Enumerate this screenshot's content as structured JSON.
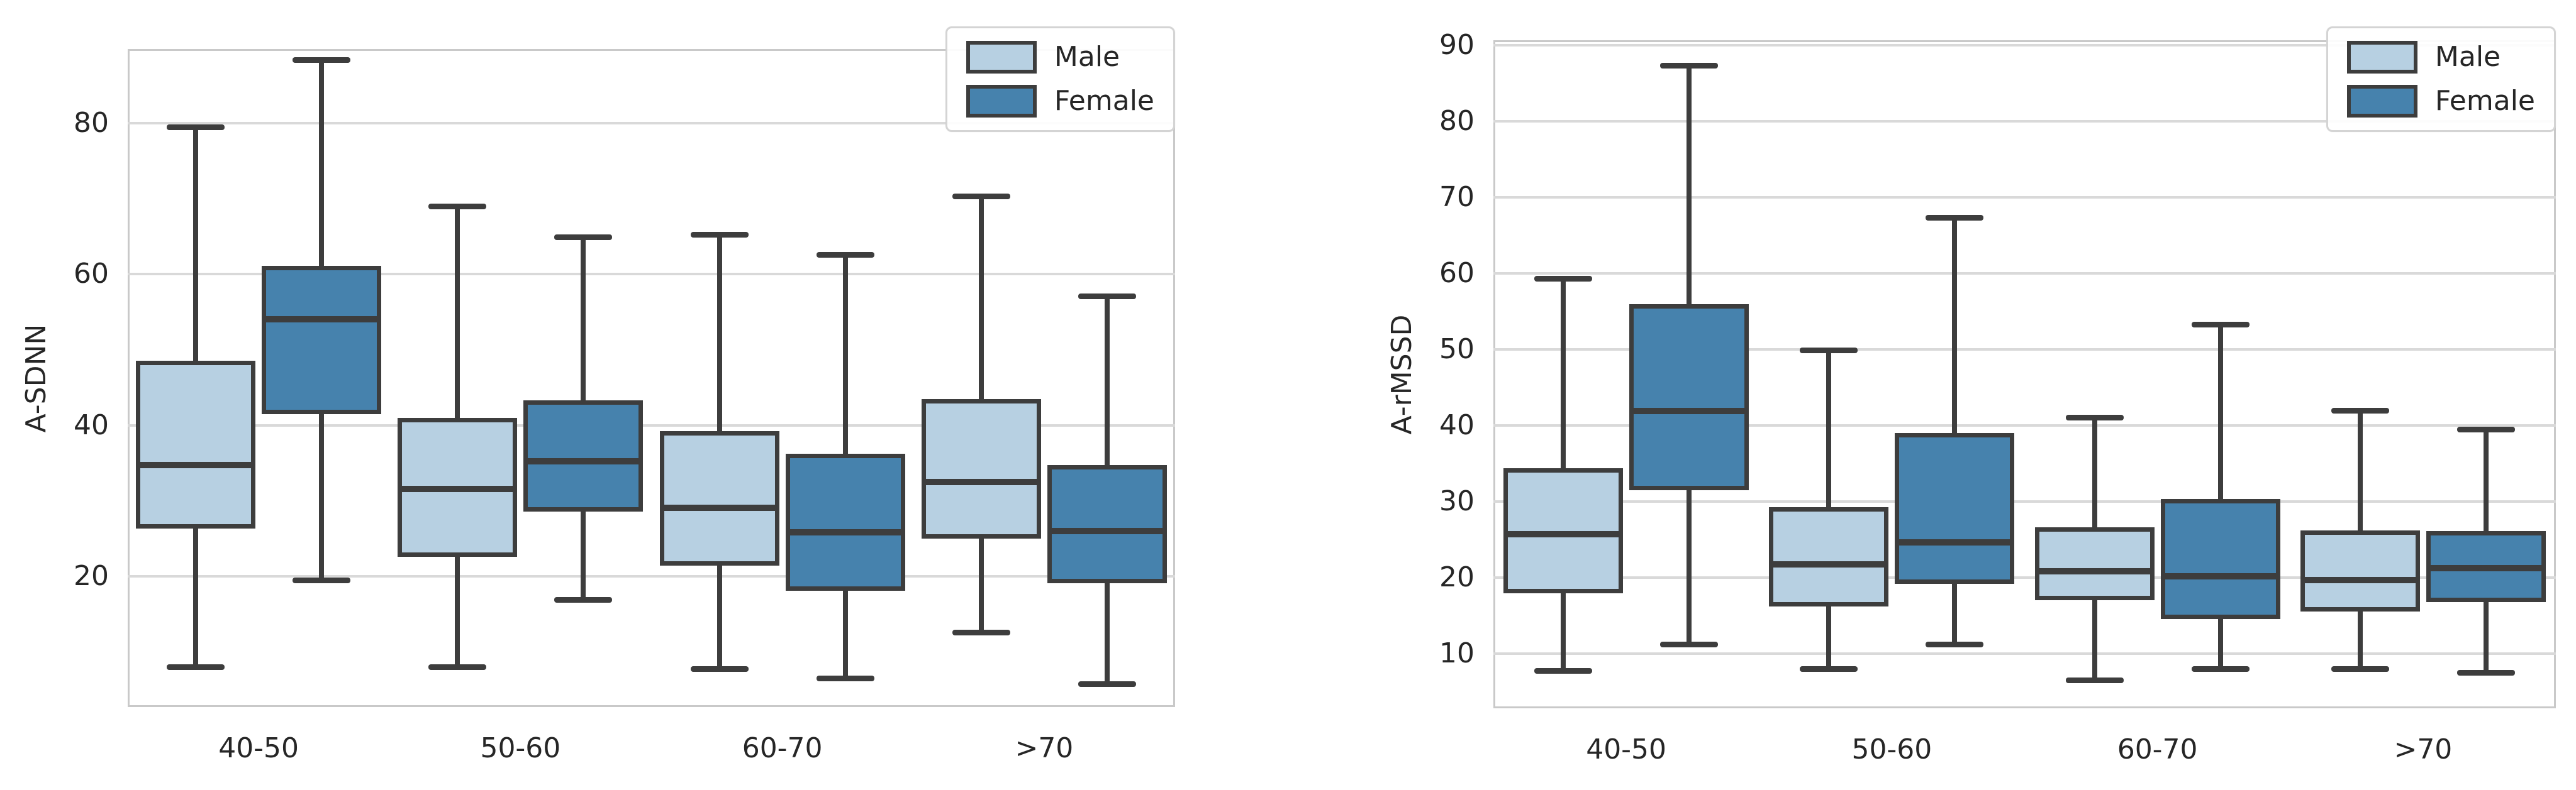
{
  "styles": {
    "male_fill": "#b7d0e2",
    "female_fill": "#4682ad",
    "box_edge": "#3d3d3d",
    "grid_color": "#d9d9d9",
    "spine_color": "#c9c9c9",
    "text_color": "#262626",
    "background": "#ffffff"
  },
  "chart_data": [
    {
      "type": "box",
      "title": "",
      "xlabel": "",
      "ylabel": "A-SDNN",
      "categories": [
        "40-50",
        "50-60",
        "60-70",
        ">70"
      ],
      "yticks": [
        20,
        40,
        60,
        80
      ],
      "ylim": [
        2.7,
        89.8
      ],
      "grid": true,
      "legend_position": "upper right",
      "series": [
        {
          "name": "Male",
          "fill": "#b7d0e2",
          "boxes": [
            {
              "whisker_low": 8.0,
              "q1": 26.3,
              "median": 34.7,
              "q3": 48.5,
              "whisker_high": 79.5
            },
            {
              "whisker_low": 8.0,
              "q1": 22.6,
              "median": 31.6,
              "q3": 41.0,
              "whisker_high": 69.0
            },
            {
              "whisker_low": 7.8,
              "q1": 21.4,
              "median": 29.1,
              "q3": 39.2,
              "whisker_high": 65.3
            },
            {
              "whisker_low": 12.6,
              "q1": 25.0,
              "median": 32.5,
              "q3": 43.5,
              "whisker_high": 70.3
            }
          ]
        },
        {
          "name": "Female",
          "fill": "#4682ad",
          "boxes": [
            {
              "whisker_low": 19.5,
              "q1": 41.5,
              "median": 54.0,
              "q3": 61.1,
              "whisker_high": 88.4
            },
            {
              "whisker_low": 16.9,
              "q1": 28.6,
              "median": 35.2,
              "q3": 43.3,
              "whisker_high": 64.9
            },
            {
              "whisker_low": 6.5,
              "q1": 18.1,
              "median": 25.8,
              "q3": 36.2,
              "whisker_high": 62.6
            },
            {
              "whisker_low": 5.8,
              "q1": 19.1,
              "median": 26.0,
              "q3": 34.7,
              "whisker_high": 57.1
            }
          ]
        }
      ]
    },
    {
      "type": "box",
      "title": "",
      "xlabel": "",
      "ylabel": "A-rMSSD",
      "categories": [
        "40-50",
        "50-60",
        "60-70",
        ">70"
      ],
      "yticks": [
        10,
        20,
        30,
        40,
        50,
        60,
        70,
        80,
        90
      ],
      "ylim": [
        2.8,
        90.7
      ],
      "grid": true,
      "legend_position": "upper right",
      "series": [
        {
          "name": "Male",
          "fill": "#b7d0e2",
          "boxes": [
            {
              "whisker_low": 7.8,
              "q1": 17.9,
              "median": 25.7,
              "q3": 34.4,
              "whisker_high": 59.4
            },
            {
              "whisker_low": 8.0,
              "q1": 16.2,
              "median": 21.7,
              "q3": 29.3,
              "whisker_high": 49.9
            },
            {
              "whisker_low": 6.5,
              "q1": 17.0,
              "median": 20.8,
              "q3": 26.6,
              "whisker_high": 41.1
            },
            {
              "whisker_low": 8.0,
              "q1": 15.5,
              "median": 19.7,
              "q3": 26.2,
              "whisker_high": 42.0
            }
          ]
        },
        {
          "name": "Female",
          "fill": "#4682ad",
          "boxes": [
            {
              "whisker_low": 11.2,
              "q1": 31.5,
              "median": 41.9,
              "q3": 56.0,
              "whisker_high": 87.4
            },
            {
              "whisker_low": 11.2,
              "q1": 19.2,
              "median": 24.6,
              "q3": 39.0,
              "whisker_high": 67.4
            },
            {
              "whisker_low": 8.0,
              "q1": 14.5,
              "median": 20.2,
              "q3": 30.3,
              "whisker_high": 53.3
            },
            {
              "whisker_low": 7.5,
              "q1": 16.8,
              "median": 21.2,
              "q3": 26.1,
              "whisker_high": 39.5
            }
          ]
        }
      ]
    }
  ]
}
